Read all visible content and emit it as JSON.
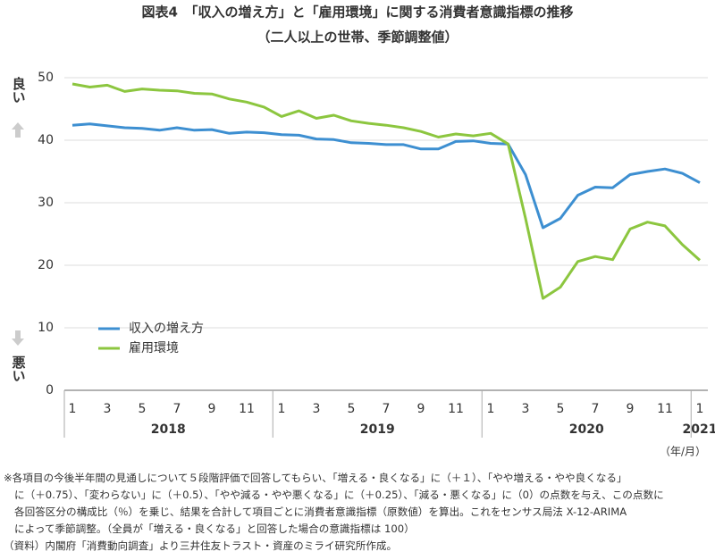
{
  "chart_data": {
    "type": "line",
    "title": "図表4　「収入の増え方」と「雇用環境」に関する消費者意識指標の推移",
    "subtitle": "（二人以上の世帯、季節調整値）",
    "y_top_label": "良い",
    "y_bottom_label": "悪い",
    "x_unit": "（年/月）",
    "categories": [
      "1",
      null,
      "3",
      null,
      "5",
      null,
      "7",
      null,
      "9",
      null,
      "11",
      null,
      "1",
      null,
      "3",
      null,
      "5",
      null,
      "7",
      null,
      "9",
      null,
      "11",
      null,
      "1",
      null,
      "3",
      null,
      "5",
      null,
      "7",
      null,
      "9",
      null,
      "11",
      null,
      "1"
    ],
    "years": [
      "2018",
      "2019",
      "2020",
      "2021"
    ],
    "series": [
      {
        "name": "収入の増え方",
        "color": "#3d8fd1",
        "values": [
          42.4,
          42.6,
          42.3,
          42.0,
          41.9,
          41.6,
          42.0,
          41.6,
          41.7,
          41.1,
          41.3,
          41.2,
          40.9,
          40.8,
          40.2,
          40.1,
          39.6,
          39.5,
          39.3,
          39.3,
          38.6,
          38.6,
          39.8,
          39.9,
          39.5,
          39.4,
          34.5,
          26.0,
          27.5,
          31.2,
          32.5,
          32.4,
          34.5,
          35.0,
          35.4,
          34.7,
          33.2
        ]
      },
      {
        "name": "雇用環境",
        "color": "#8cc63f",
        "values": [
          49.0,
          48.5,
          48.8,
          47.8,
          48.2,
          48.0,
          47.9,
          47.5,
          47.4,
          46.6,
          46.1,
          45.3,
          43.8,
          44.7,
          43.5,
          44.0,
          43.1,
          42.7,
          42.4,
          42.0,
          41.4,
          40.5,
          41.0,
          40.7,
          41.1,
          39.4,
          27.5,
          14.7,
          16.5,
          20.6,
          21.4,
          20.9,
          25.8,
          26.9,
          26.3,
          23.3,
          20.8
        ]
      }
    ],
    "ylim": [
      0,
      50
    ],
    "yticks": [
      0,
      10,
      20,
      30,
      40,
      50
    ],
    "grid": true
  },
  "notes": [
    "※各項目の今後半年間の見通しについて５段階評価で回答してもらい、「増える・良くなる」に（＋１）、「やや増える・やや良くなる」",
    "に（＋0.75）、「変わらない」に（＋0.5）、「やや減る・やや悪くなる」に（＋0.25）、「減る・悪くなる」に（0）の点数を与え、この点数に",
    "各回答区分の構成比（％）を乗じ、結果を合計して項目ごとに消費者意識指標（原数値）を算出。これをセンサス局法 X-12-ARIMA",
    "によって季節調整。（全員が「増える・良くなる」と回答した場合の意識指標は 100）",
    "（資料）内閣府「消費動向調査」より三井住友トラスト・資産のミライ研究所作成。"
  ]
}
